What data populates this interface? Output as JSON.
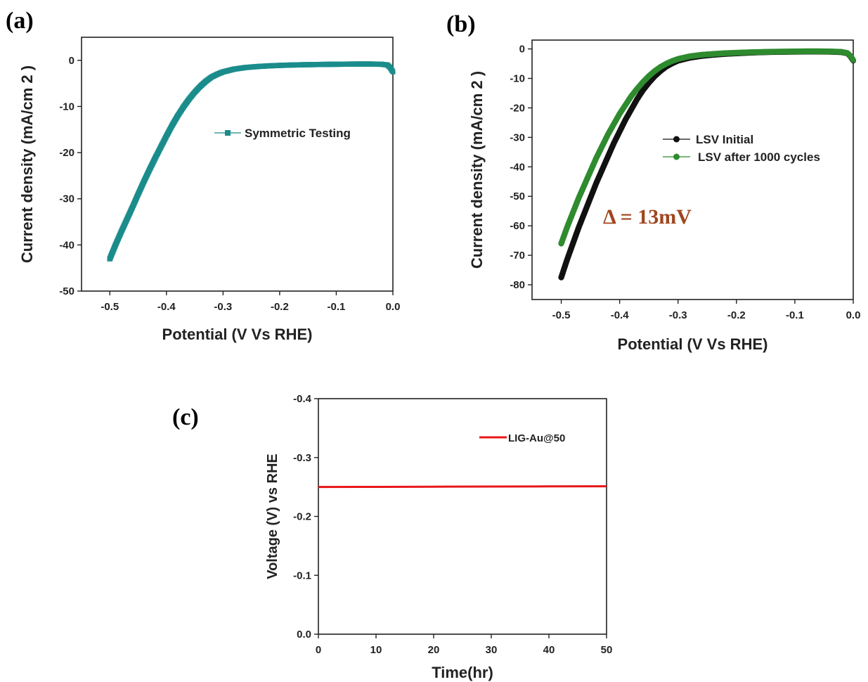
{
  "chart_data": [
    {
      "panel": "(a)",
      "type": "line",
      "xlabel": "Potential (V Vs RHE)",
      "ylabel": "Current density (mA/cm 2 )",
      "xlim": [
        -0.55,
        0.0
      ],
      "ylim": [
        -50,
        5
      ],
      "xticks": [
        "-0.5",
        "-0.4",
        "-0.3",
        "-0.2",
        "-0.1",
        "0.0"
      ],
      "yticks": [
        "0",
        "-10",
        "-20",
        "-30",
        "-40",
        "-50"
      ],
      "legend_position": "upper-right",
      "series": [
        {
          "name": "Symmetric Testing",
          "color": "#1b8c8c",
          "marker": "square",
          "x": [
            -0.5,
            -0.49,
            -0.48,
            -0.47,
            -0.46,
            -0.45,
            -0.44,
            -0.43,
            -0.42,
            -0.41,
            -0.4,
            -0.39,
            -0.38,
            -0.37,
            -0.36,
            -0.35,
            -0.34,
            -0.33,
            -0.32,
            -0.31,
            -0.3,
            -0.28,
            -0.26,
            -0.24,
            -0.22,
            -0.2,
            -0.18,
            -0.16,
            -0.14,
            -0.12,
            -0.1,
            -0.08,
            -0.06,
            -0.04,
            -0.02,
            -0.01,
            -0.005,
            0.0
          ],
          "y": [
            -43.0,
            -40.0,
            -37.2,
            -34.5,
            -31.8,
            -29.0,
            -26.3,
            -23.7,
            -21.2,
            -18.8,
            -16.4,
            -14.1,
            -12.0,
            -10.1,
            -8.4,
            -6.9,
            -5.6,
            -4.5,
            -3.6,
            -3.0,
            -2.5,
            -1.9,
            -1.55,
            -1.35,
            -1.2,
            -1.1,
            -1.02,
            -0.96,
            -0.92,
            -0.88,
            -0.85,
            -0.82,
            -0.8,
            -0.8,
            -0.85,
            -1.0,
            -1.5,
            -2.5
          ]
        }
      ]
    },
    {
      "panel": "(b)",
      "type": "line",
      "xlabel": "Potential (V Vs RHE)",
      "ylabel": "Current density (mA/cm 2 )",
      "xlim": [
        -0.55,
        0.0
      ],
      "ylim": [
        -85,
        3
      ],
      "xticks": [
        "-0.5",
        "-0.4",
        "-0.3",
        "-0.2",
        "-0.1",
        "0.0"
      ],
      "yticks": [
        "0",
        "-10",
        "-20",
        "-30",
        "-40",
        "-50",
        "-60",
        "-70",
        "-80"
      ],
      "legend_position": "upper-right",
      "annotation": "Δ = 13mV",
      "series": [
        {
          "name": "LSV Initial",
          "color": "#111111",
          "marker": "circle",
          "x": [
            -0.5,
            -0.49,
            -0.48,
            -0.47,
            -0.46,
            -0.45,
            -0.44,
            -0.43,
            -0.42,
            -0.41,
            -0.4,
            -0.39,
            -0.38,
            -0.37,
            -0.36,
            -0.35,
            -0.34,
            -0.33,
            -0.32,
            -0.31,
            -0.3,
            -0.28,
            -0.26,
            -0.24,
            -0.22,
            -0.2,
            -0.18,
            -0.16,
            -0.14,
            -0.12,
            -0.1,
            -0.08,
            -0.06,
            -0.04,
            -0.02,
            -0.01,
            -0.005,
            0.0
          ],
          "y": [
            -77.5,
            -71.5,
            -66.0,
            -60.5,
            -55.5,
            -50.5,
            -45.5,
            -41.0,
            -36.5,
            -32.0,
            -28.0,
            -24.0,
            -20.5,
            -17.0,
            -14.0,
            -11.5,
            -9.3,
            -7.5,
            -6.0,
            -4.9,
            -4.0,
            -3.0,
            -2.4,
            -2.0,
            -1.7,
            -1.5,
            -1.3,
            -1.15,
            -1.05,
            -1.0,
            -0.95,
            -0.9,
            -0.9,
            -0.95,
            -1.1,
            -1.5,
            -2.5,
            -4.0
          ]
        },
        {
          "name": "LSV after 1000 cycles",
          "color": "#2e8b2e",
          "marker": "circle",
          "x": [
            -0.5,
            -0.49,
            -0.48,
            -0.47,
            -0.46,
            -0.45,
            -0.44,
            -0.43,
            -0.42,
            -0.41,
            -0.4,
            -0.39,
            -0.38,
            -0.37,
            -0.36,
            -0.35,
            -0.34,
            -0.33,
            -0.32,
            -0.31,
            -0.3,
            -0.28,
            -0.26,
            -0.24,
            -0.22,
            -0.2,
            -0.18,
            -0.16,
            -0.14,
            -0.12,
            -0.1,
            -0.08,
            -0.06,
            -0.04,
            -0.02,
            -0.01,
            -0.005,
            0.0
          ],
          "y": [
            -66.0,
            -60.5,
            -55.5,
            -50.5,
            -46.0,
            -41.5,
            -37.0,
            -33.0,
            -29.0,
            -25.5,
            -22.0,
            -19.0,
            -16.0,
            -13.5,
            -11.2,
            -9.2,
            -7.5,
            -6.1,
            -5.0,
            -4.1,
            -3.4,
            -2.5,
            -2.0,
            -1.7,
            -1.45,
            -1.3,
            -1.15,
            -1.05,
            -0.95,
            -0.9,
            -0.85,
            -0.8,
            -0.8,
            -0.85,
            -1.0,
            -1.4,
            -2.3,
            -3.8
          ]
        }
      ]
    },
    {
      "panel": "(c)",
      "type": "line",
      "xlabel": "Time(hr)",
      "ylabel": "Voltage (V) vs RHE",
      "xlim": [
        0,
        50
      ],
      "ylim": [
        0.0,
        -0.4
      ],
      "xticks": [
        "0",
        "10",
        "20",
        "30",
        "40",
        "50"
      ],
      "yticks": [
        "0.0",
        "-0.1",
        "-0.2",
        "-0.3",
        "-0.4"
      ],
      "legend_position": "upper-right",
      "series": [
        {
          "name": "LIG-Au@50",
          "color": "#e8171a",
          "marker": "none",
          "x": [
            0,
            10,
            20,
            30,
            40,
            50
          ],
          "y": [
            -0.25,
            -0.2502,
            -0.2505,
            -0.2508,
            -0.251,
            -0.2512
          ]
        }
      ]
    }
  ]
}
